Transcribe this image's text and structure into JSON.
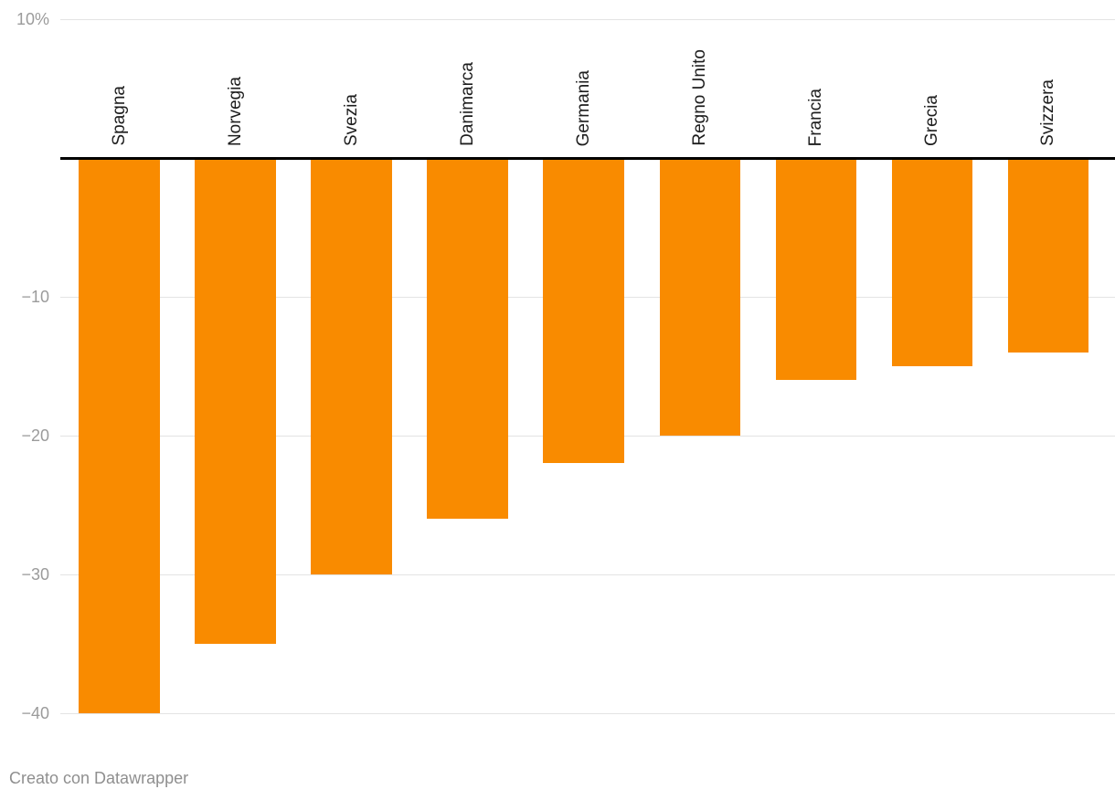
{
  "chart_data": {
    "type": "bar",
    "orientation": "vertical",
    "categories": [
      "Spagna",
      "Norvegia",
      "Svezia",
      "Danimarca",
      "Germania",
      "Regno Unito",
      "Francia",
      "Grecia",
      "Svizzera"
    ],
    "values": [
      -40,
      -35,
      -30,
      -26,
      -22,
      -20,
      -16,
      -15,
      -14
    ],
    "title": "",
    "xlabel": "",
    "ylabel": "",
    "ylim": [
      -43,
      10
    ],
    "unit": "%",
    "y_ticks": [
      10,
      -10,
      -20,
      -30,
      -40
    ],
    "y_tick_labels": [
      "10%",
      "−10",
      "−20",
      "−30",
      "−40"
    ],
    "grid": true,
    "legend_position": "none",
    "bar_color": "#f98b00"
  },
  "footer": {
    "credit": "Creato con Datawrapper"
  },
  "colors": {
    "bar": "#f98b00",
    "gridline": "#e3e3e3",
    "axis_text": "#9b9b9b",
    "category_text": "#1d1d1d",
    "zero_line": "#000000",
    "background": "#ffffff"
  }
}
